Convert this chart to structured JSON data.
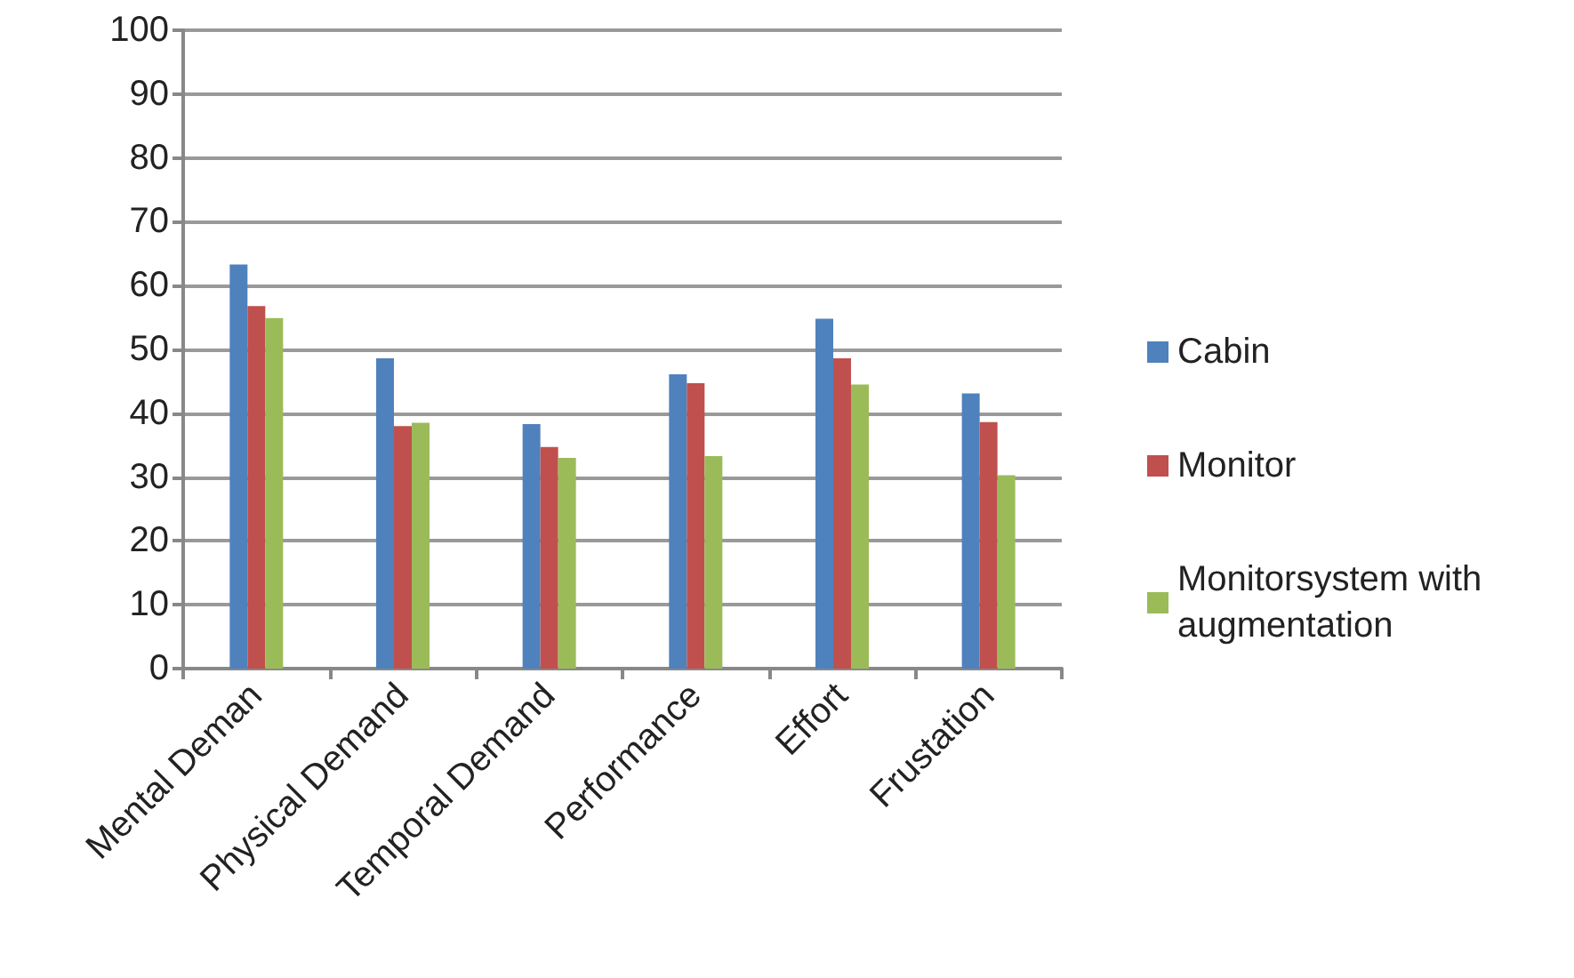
{
  "chart_data": {
    "type": "bar",
    "categories": [
      "Mental Deman",
      "Physical Demand",
      "Temporal Demand",
      "Performance",
      "Effort",
      "Frustation"
    ],
    "series": [
      {
        "name": "Cabin",
        "color": "#4f81bd",
        "values": [
          63.3,
          48.6,
          38.3,
          46.1,
          54.8,
          43.1
        ]
      },
      {
        "name": "Monitor",
        "color": "#c0504d",
        "values": [
          56.8,
          38.0,
          34.7,
          44.7,
          48.6,
          38.6
        ]
      },
      {
        "name": "Monitorsystem with augmentation",
        "color": "#9bbb59",
        "values": [
          54.9,
          38.5,
          33.0,
          33.3,
          44.5,
          30.3
        ]
      }
    ],
    "ylim": [
      0,
      100
    ],
    "yticks": [
      0,
      10,
      20,
      30,
      40,
      50,
      60,
      70,
      80,
      90,
      100
    ],
    "grid": "y",
    "legend": "right"
  }
}
